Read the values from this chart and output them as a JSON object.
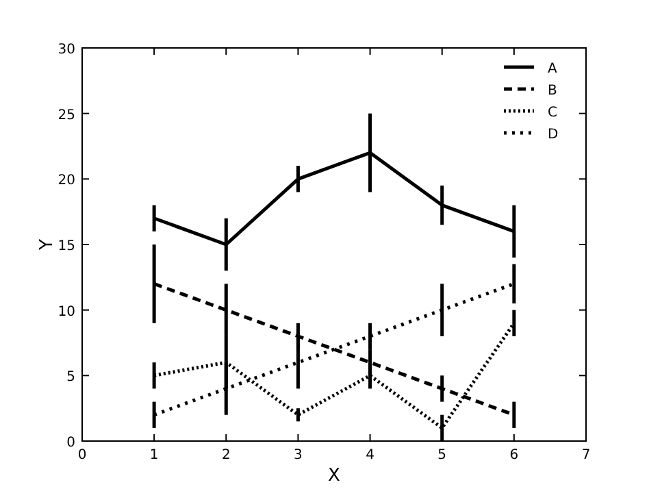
{
  "chart_data": {
    "type": "line",
    "xlabel": "X",
    "ylabel": "Y",
    "x": [
      1,
      2,
      3,
      4,
      5,
      6
    ],
    "xlim": [
      0,
      7
    ],
    "xticks": [
      0,
      1,
      2,
      3,
      4,
      5,
      6,
      7
    ],
    "ylim": [
      0,
      30
    ],
    "yticks": [
      0,
      5,
      10,
      15,
      20,
      25,
      30
    ],
    "legend": "top right",
    "marker": "none",
    "series": [
      {
        "name": "A",
        "color": "#000000",
        "line_style": "solid",
        "values": [
          17,
          15,
          20,
          22,
          18,
          16
        ],
        "errors": [
          1,
          2,
          1,
          3,
          1.5,
          2
        ]
      },
      {
        "name": "B",
        "color": "#000000",
        "line_style": "dashed",
        "values": [
          12,
          10,
          8,
          6,
          4,
          2
        ],
        "errors": [
          3,
          2,
          1,
          1,
          1,
          1
        ]
      },
      {
        "name": "C",
        "color": "#000000",
        "line_style": "dotted",
        "values": [
          5,
          6,
          2,
          5,
          1,
          9
        ],
        "errors": [
          1,
          2,
          0.5,
          1,
          1,
          1
        ]
      },
      {
        "name": "D",
        "color": "#000000",
        "line_style": "dashdot",
        "values": [
          2,
          4,
          6,
          8,
          10,
          12
        ],
        "errors": [
          1,
          2,
          2,
          1,
          2,
          1.5
        ]
      }
    ]
  }
}
